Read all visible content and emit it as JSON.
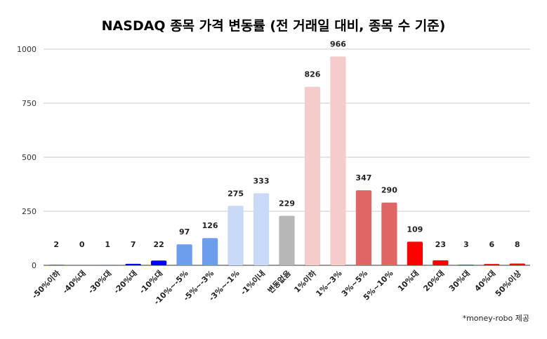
{
  "chart_data": {
    "type": "bar",
    "title": "NASDAQ 종목 가격 변동률 (전 거래일 대비, 종목 수 기준)",
    "xlabel": "",
    "ylabel": "",
    "ylim": [
      0,
      1000
    ],
    "yticks": [
      0,
      250,
      500,
      750,
      1000
    ],
    "grid": true,
    "legend": "none",
    "categories": [
      "-50%이하",
      "-40%대",
      "-30%대",
      "-20%대",
      "-10%대",
      "-10%~-5%",
      "-5%~-3%",
      "-3%~-1%",
      "-1%이내",
      "변동없음",
      "1%이하",
      "1%~3%",
      "3%~5%",
      "5%~10%",
      "10%대",
      "20%대",
      "30%대",
      "40%대",
      "50%이상"
    ],
    "values": [
      2,
      0,
      1,
      7,
      22,
      97,
      126,
      275,
      333,
      229,
      826,
      966,
      347,
      290,
      109,
      23,
      3,
      6,
      8
    ],
    "colors": [
      "#0000ff",
      "#0000ff",
      "#0000ff",
      "#0000ff",
      "#0000ff",
      "#6d9eeb",
      "#6d9eeb",
      "#c9daf8",
      "#c9daf8",
      "#b7b7b7",
      "#f4cccc",
      "#f4cccc",
      "#e06666",
      "#e06666",
      "#ff0000",
      "#ff0000",
      "#ff0000",
      "#ff0000",
      "#ff0000"
    ]
  },
  "credit": "*money-robo 제공"
}
